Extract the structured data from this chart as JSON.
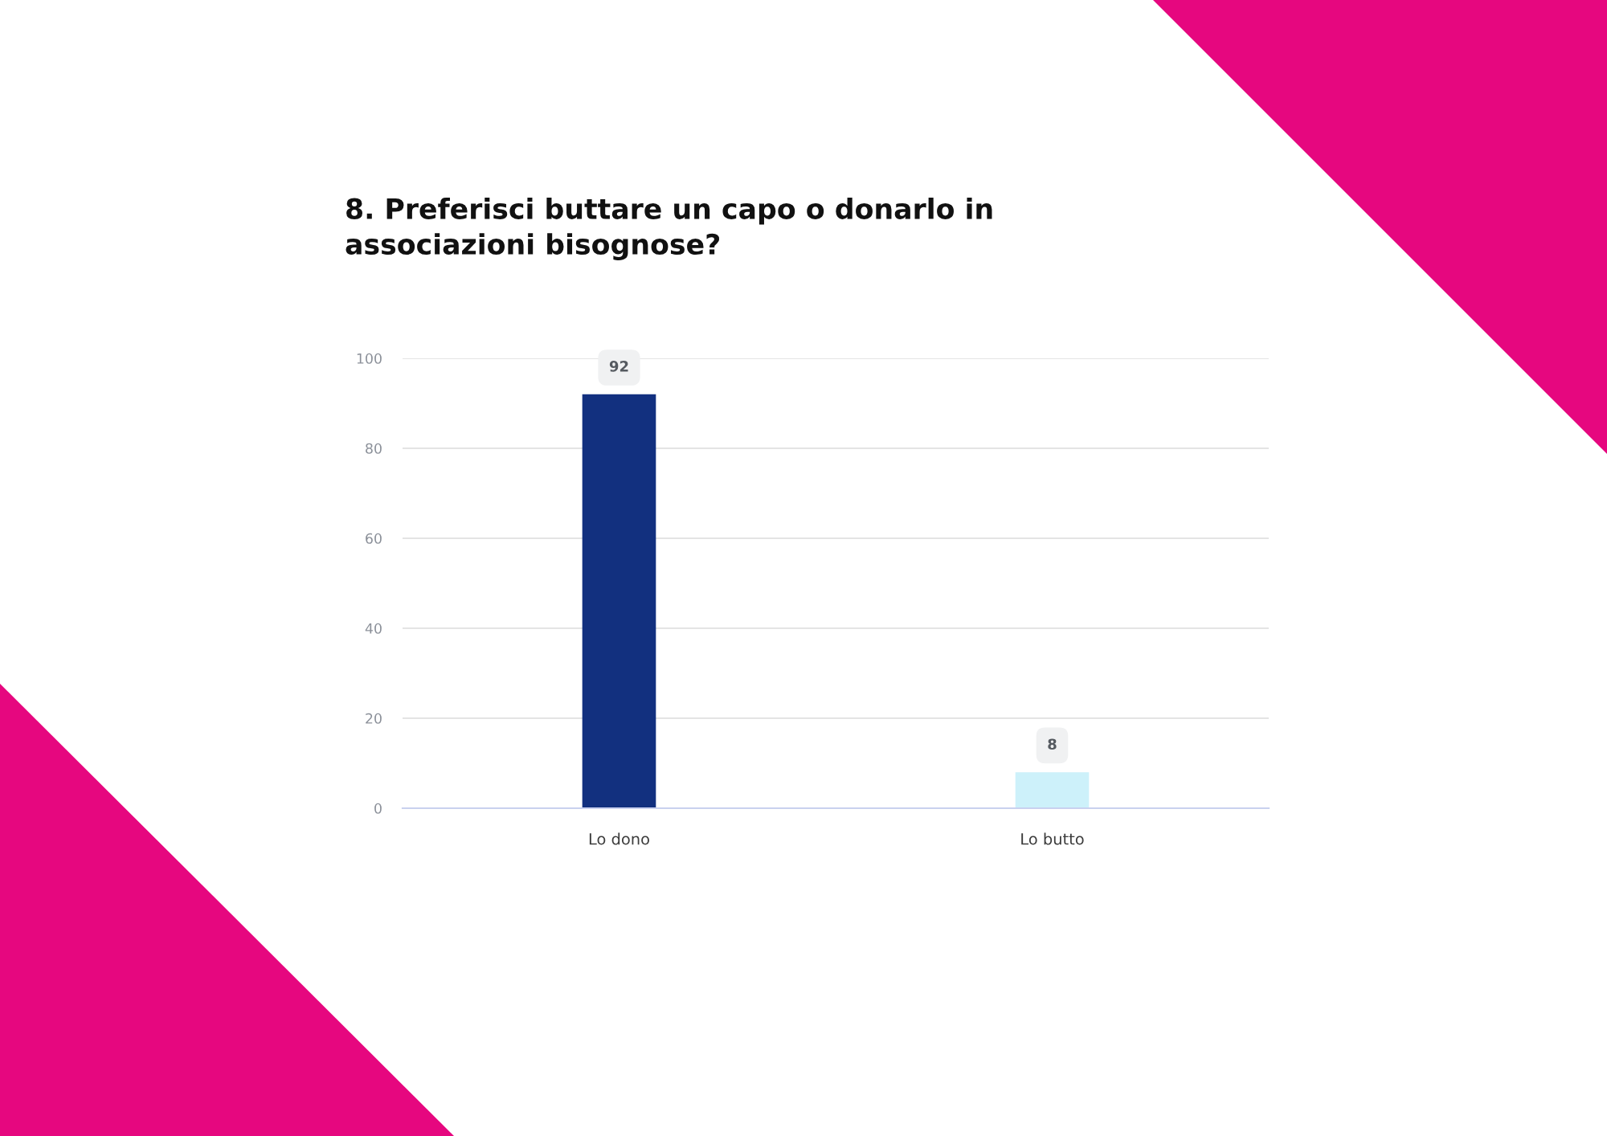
{
  "chart_data": {
    "type": "bar",
    "title": "8. Preferisci buttare un capo o donarlo in associazioni bisognose?",
    "categories": [
      "Lo dono",
      "Lo butto"
    ],
    "values": [
      92,
      8
    ],
    "colors": [
      "#12307f",
      "#cdf1fa"
    ],
    "ylim": [
      0,
      100
    ],
    "yticks": [
      0,
      20,
      40,
      60,
      80,
      100
    ],
    "grid": "y",
    "data_labels": true
  }
}
